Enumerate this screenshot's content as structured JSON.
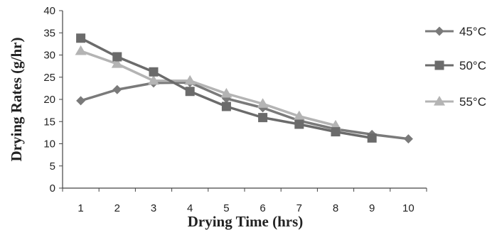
{
  "chart_data": {
    "type": "line",
    "title": "",
    "xlabel": "Drying Time (hrs)",
    "ylabel": "Drying Rates  (g/hr)",
    "categories": [
      "1",
      "2",
      "3",
      "4",
      "5",
      "6",
      "7",
      "8",
      "9",
      "10"
    ],
    "x": [
      1,
      2,
      3,
      4,
      5,
      6,
      7,
      8,
      9,
      10
    ],
    "ylim": [
      0,
      40
    ],
    "xlim": [
      0.5,
      10.5
    ],
    "yticks": [
      0,
      5,
      10,
      15,
      20,
      25,
      30,
      35,
      40
    ],
    "grid": false,
    "legend_position": "right",
    "series": [
      {
        "name": "45°C",
        "marker": "diamond",
        "color": "#7a7a7a",
        "values": [
          19.7,
          22.2,
          23.7,
          23.8,
          20.2,
          18.1,
          15.2,
          13.3,
          12.1,
          11.1
        ]
      },
      {
        "name": "50°C",
        "marker": "square",
        "color": "#6b6b6b",
        "values": [
          33.8,
          29.6,
          26.2,
          21.8,
          18.4,
          15.9,
          14.4,
          12.7,
          11.3,
          null
        ]
      },
      {
        "name": "55°C",
        "marker": "triangle",
        "color": "#b4b4b4",
        "values": [
          30.9,
          28.0,
          24.2,
          24.2,
          21.3,
          19.0,
          16.2,
          14.1,
          null,
          null
        ]
      }
    ]
  }
}
